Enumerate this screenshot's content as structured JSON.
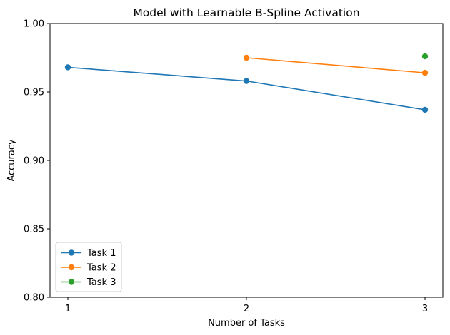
{
  "chart_data": {
    "type": "line",
    "title": "Model with Learnable B-Spline Activation",
    "xlabel": "Number of Tasks",
    "ylabel": "Accuracy",
    "x": [
      1,
      2,
      3
    ],
    "xlim": [
      0.9,
      3.1
    ],
    "ylim": [
      0.8,
      1.0
    ],
    "xticks": [
      "1",
      "2",
      "3"
    ],
    "yticks": [
      "0.80",
      "0.85",
      "0.90",
      "0.95",
      "1.00"
    ],
    "grid": false,
    "legend_position": "lower-left",
    "series": [
      {
        "name": "Task 1",
        "color": "#1f77b4",
        "x": [
          1,
          2,
          3
        ],
        "values": [
          0.968,
          0.958,
          0.937
        ]
      },
      {
        "name": "Task 2",
        "color": "#ff7f0e",
        "x": [
          2,
          3
        ],
        "values": [
          0.975,
          0.964
        ]
      },
      {
        "name": "Task 3",
        "color": "#2ca02c",
        "x": [
          3
        ],
        "values": [
          0.976
        ]
      }
    ]
  }
}
